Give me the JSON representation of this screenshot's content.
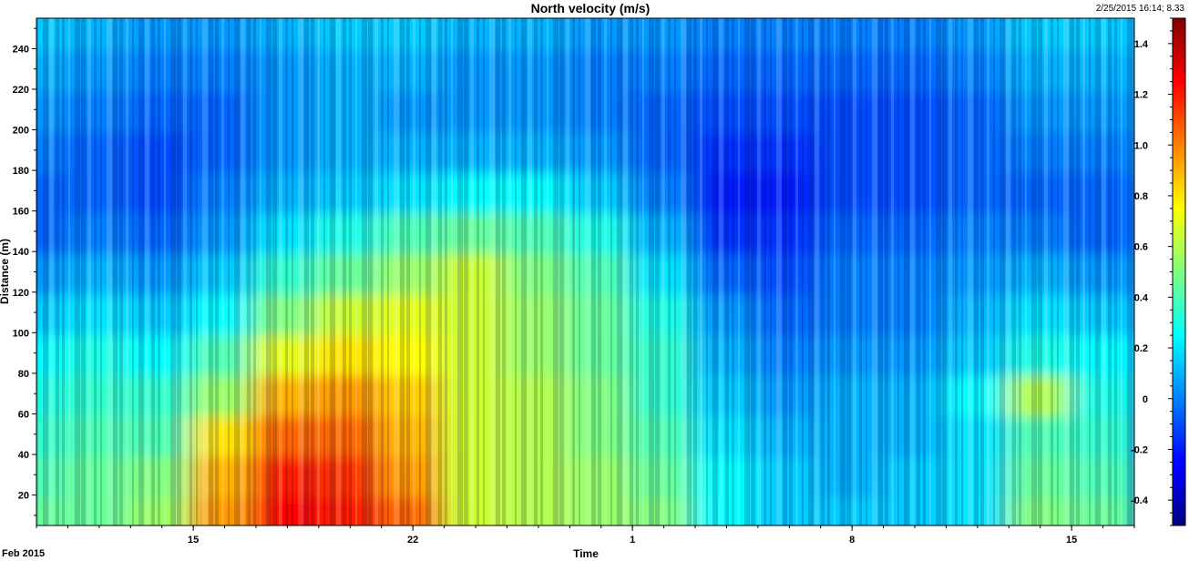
{
  "chart_data": {
    "type": "heatmap",
    "title": "North velocity (m/s)",
    "subtitle": "2/25/2015 16:14; 8.33",
    "xlabel": "Time",
    "ylabel": "Distance (m)",
    "x_start_label": "Feb 2015",
    "x_range": [
      "2015-02-10",
      "2015-03-17"
    ],
    "x_ticks": [
      {
        "label": "15",
        "date": "2015-02-15"
      },
      {
        "label": "22",
        "date": "2015-02-22"
      },
      {
        "label": "1",
        "date": "2015-03-01"
      },
      {
        "label": "8",
        "date": "2015-03-08"
      },
      {
        "label": "15",
        "date": "2015-03-15"
      }
    ],
    "ylim": [
      5,
      255
    ],
    "y_ticks": [
      20,
      40,
      60,
      80,
      100,
      120,
      140,
      160,
      180,
      200,
      220,
      240
    ],
    "colorbar": {
      "range": [
        -0.5,
        1.5
      ],
      "ticks": [
        -0.4,
        -0.2,
        0,
        0.2,
        0.4,
        0.6,
        0.8,
        1.0,
        1.2,
        1.4
      ],
      "tick_labels": [
        "-0.4",
        "-0.2",
        "0",
        "0.2",
        "0.4",
        "0.6",
        "0.8",
        "1.0",
        "1.2",
        "1.4"
      ],
      "colormap": "jet"
    },
    "grid": false,
    "x_dates": [
      "2015-02-10",
      "2015-02-12",
      "2015-02-14",
      "2015-02-16",
      "2015-02-18",
      "2015-02-20",
      "2015-02-22",
      "2015-02-24",
      "2015-02-26",
      "2015-02-28",
      "2015-03-02",
      "2015-03-04",
      "2015-03-06",
      "2015-03-08",
      "2015-03-10",
      "2015-03-12",
      "2015-03-14",
      "2015-03-16"
    ],
    "y_distances": [
      10,
      30,
      50,
      70,
      90,
      110,
      130,
      150,
      170,
      190,
      210,
      230,
      250
    ],
    "z": [
      [
        0.45,
        0.45,
        0.55,
        0.95,
        1.25,
        1.2,
        1.05,
        0.65,
        0.6,
        0.55,
        0.5,
        0.25,
        0.15,
        0.15,
        0.15,
        0.2,
        0.5,
        0.45
      ],
      [
        0.4,
        0.45,
        0.5,
        0.9,
        1.2,
        1.15,
        0.95,
        0.65,
        0.6,
        0.55,
        0.45,
        0.25,
        0.15,
        0.1,
        0.15,
        0.2,
        0.45,
        0.4
      ],
      [
        0.35,
        0.4,
        0.4,
        0.8,
        1.05,
        1.05,
        0.9,
        0.65,
        0.6,
        0.5,
        0.4,
        0.2,
        0.1,
        0.1,
        0.1,
        0.2,
        0.4,
        0.35
      ],
      [
        0.3,
        0.35,
        0.35,
        0.55,
        0.9,
        0.95,
        0.85,
        0.65,
        0.6,
        0.5,
        0.35,
        0.15,
        0.05,
        0.1,
        0.1,
        0.25,
        0.6,
        0.3
      ],
      [
        0.25,
        0.3,
        0.25,
        0.4,
        0.7,
        0.8,
        0.75,
        0.65,
        0.55,
        0.45,
        0.35,
        0.1,
        0.0,
        0.05,
        0.05,
        0.15,
        0.3,
        0.25
      ],
      [
        0.15,
        0.2,
        0.15,
        0.25,
        0.5,
        0.65,
        0.7,
        0.65,
        0.55,
        0.45,
        0.3,
        0.05,
        -0.05,
        0.0,
        0.0,
        0.1,
        0.2,
        0.15
      ],
      [
        0.05,
        0.1,
        0.05,
        0.15,
        0.35,
        0.45,
        0.55,
        0.65,
        0.5,
        0.4,
        0.2,
        -0.05,
        -0.1,
        0.0,
        0.0,
        0.05,
        0.1,
        0.05
      ],
      [
        -0.05,
        0.0,
        -0.05,
        0.05,
        0.2,
        0.3,
        0.4,
        0.45,
        0.4,
        0.3,
        0.1,
        -0.15,
        -0.15,
        -0.05,
        -0.05,
        0.0,
        0.0,
        -0.05
      ],
      [
        -0.05,
        -0.05,
        -0.1,
        0.0,
        0.1,
        0.15,
        0.2,
        0.25,
        0.25,
        0.15,
        0.0,
        -0.2,
        -0.2,
        -0.1,
        -0.1,
        -0.05,
        -0.05,
        -0.05
      ],
      [
        0.0,
        -0.05,
        -0.1,
        -0.05,
        0.05,
        0.1,
        0.1,
        0.1,
        0.1,
        0.05,
        -0.05,
        -0.15,
        -0.15,
        -0.1,
        -0.1,
        -0.05,
        0.0,
        0.0
      ],
      [
        0.05,
        0.0,
        -0.05,
        -0.05,
        0.05,
        0.1,
        0.05,
        0.05,
        0.05,
        0.0,
        -0.05,
        -0.1,
        -0.1,
        -0.1,
        -0.1,
        -0.05,
        0.05,
        0.05
      ],
      [
        0.1,
        0.05,
        0.0,
        0.0,
        0.05,
        0.1,
        0.1,
        0.05,
        0.05,
        0.0,
        0.0,
        -0.05,
        -0.05,
        -0.05,
        -0.05,
        0.0,
        0.1,
        0.1
      ],
      [
        0.15,
        0.1,
        0.05,
        0.05,
        0.1,
        0.15,
        0.15,
        0.1,
        0.1,
        0.05,
        0.05,
        0.0,
        0.0,
        0.0,
        0.0,
        0.05,
        0.15,
        0.15
      ]
    ]
  }
}
